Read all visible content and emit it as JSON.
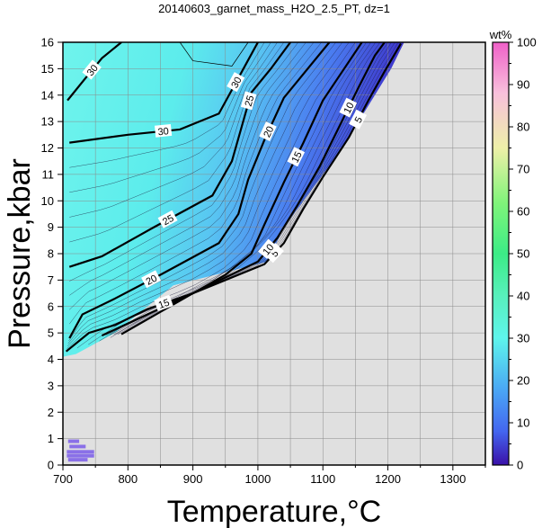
{
  "chart_data": {
    "type": "contour",
    "title": "20140603_garnet_mass_H2O_2.5_PT, dz=1",
    "xlabel": "Temperature,°C",
    "ylabel": "Pressure,kbar",
    "xlim": [
      700,
      1350
    ],
    "ylim": [
      0,
      16
    ],
    "x_ticks": [
      "700",
      "800",
      "900",
      "1000",
      "1100",
      "1200",
      "1300"
    ],
    "y_ticks": [
      "0",
      "1",
      "2",
      "3",
      "4",
      "5",
      "6",
      "7",
      "8",
      "9",
      "10",
      "11",
      "12",
      "13",
      "14",
      "15",
      "16"
    ],
    "grid": true,
    "colorbar": {
      "label": "wt%",
      "range": [
        0,
        100
      ],
      "ticks": [
        "0",
        "10",
        "20",
        "30",
        "40",
        "50",
        "60",
        "70",
        "80",
        "90",
        "100"
      ],
      "stops": [
        {
          "v": 0,
          "color": "#3a10a8"
        },
        {
          "v": 8,
          "color": "#4466f0"
        },
        {
          "v": 18,
          "color": "#4aa8f4"
        },
        {
          "v": 30,
          "color": "#5ef5ec"
        },
        {
          "v": 40,
          "color": "#58f0bc"
        },
        {
          "v": 50,
          "color": "#3cec86"
        },
        {
          "v": 62,
          "color": "#80f47a"
        },
        {
          "v": 75,
          "color": "#eef0a8"
        },
        {
          "v": 88,
          "color": "#f8c0dc"
        },
        {
          "v": 100,
          "color": "#f060c8"
        }
      ]
    },
    "no_data_color": "#e0e0e0",
    "field_boundary": [
      [
        700,
        16
      ],
      [
        1225,
        16
      ],
      [
        1205,
        15
      ],
      [
        1180,
        14
      ],
      [
        1155,
        13
      ],
      [
        1130,
        12
      ],
      [
        1100,
        11
      ],
      [
        1070,
        10
      ],
      [
        1040,
        9
      ],
      [
        1015,
        7.7
      ],
      [
        870,
        6.8
      ],
      [
        780,
        5
      ],
      [
        720,
        4.2
      ],
      [
        700,
        4.1
      ]
    ],
    "contours": [
      {
        "level": 5,
        "label": "5",
        "major": true,
        "points": [
          [
            760,
            4.9
          ],
          [
            900,
            6.5
          ],
          [
            1010,
            7.6
          ],
          [
            1040,
            8.4
          ],
          [
            1070,
            9.7
          ],
          [
            1100,
            10.9
          ],
          [
            1140,
            12.4
          ],
          [
            1170,
            13.8
          ],
          [
            1195,
            14.9
          ],
          [
            1220,
            15.95
          ]
        ]
      },
      {
        "level": 10,
        "label": "10",
        "major": true,
        "points": [
          [
            790,
            4.95
          ],
          [
            900,
            6.5
          ],
          [
            1000,
            7.7
          ],
          [
            1030,
            8.6
          ],
          [
            1060,
            9.8
          ],
          [
            1095,
            11.3
          ],
          [
            1125,
            12.8
          ],
          [
            1155,
            14.3
          ],
          [
            1180,
            15.5
          ],
          [
            1195,
            16
          ]
        ]
      },
      {
        "level": 15,
        "label": "15",
        "major": true,
        "points": [
          [
            705,
            4.3
          ],
          [
            740,
            5.0
          ],
          [
            780,
            5.3
          ],
          [
            830,
            5.9
          ],
          [
            900,
            6.5
          ],
          [
            950,
            7.2
          ],
          [
            990,
            8.0
          ],
          [
            1010,
            9.1
          ],
          [
            1040,
            10.7
          ],
          [
            1070,
            12.2
          ],
          [
            1100,
            13.8
          ],
          [
            1130,
            14.9
          ],
          [
            1160,
            16
          ]
        ]
      },
      {
        "level": 20,
        "label": "20",
        "major": true,
        "points": [
          [
            710,
            4.8
          ],
          [
            730,
            5.7
          ],
          [
            780,
            6.3
          ],
          [
            850,
            7.2
          ],
          [
            940,
            8.4
          ],
          [
            970,
            9.5
          ],
          [
            985,
            10.8
          ],
          [
            1010,
            12.3
          ],
          [
            1040,
            13.9
          ],
          [
            1080,
            15.1
          ],
          [
            1110,
            16
          ]
        ]
      },
      {
        "level": 25,
        "label": "25",
        "major": true,
        "points": [
          [
            710,
            7.5
          ],
          [
            760,
            7.9
          ],
          [
            840,
            9.0
          ],
          [
            930,
            10.2
          ],
          [
            960,
            11.5
          ],
          [
            975,
            12.8
          ],
          [
            990,
            14.1
          ],
          [
            1020,
            15.0
          ],
          [
            1050,
            16
          ]
        ]
      },
      {
        "level": 30,
        "label": "30",
        "major": true,
        "points": [
          [
            710,
            12.2
          ],
          [
            800,
            12.5
          ],
          [
            880,
            12.7
          ],
          [
            940,
            13.3
          ],
          [
            960,
            14.2
          ],
          [
            980,
            15.1
          ],
          [
            1000,
            16
          ]
        ]
      },
      {
        "level": 30,
        "label": "30",
        "major": true,
        "points": [
          [
            707,
            13.8
          ],
          [
            730,
            14.5
          ],
          [
            760,
            15.4
          ],
          [
            790,
            16
          ]
        ]
      },
      {
        "level": 32,
        "label": "",
        "major": false,
        "points": [
          [
            880,
            16
          ],
          [
            900,
            15.3
          ],
          [
            960,
            15.1
          ],
          [
            985,
            16
          ]
        ]
      }
    ],
    "legend_patches": [
      {
        "x0": 708,
        "x1": 725,
        "y": 0.9
      },
      {
        "x0": 710,
        "x1": 735,
        "y": 0.7
      },
      {
        "x0": 706,
        "x1": 748,
        "y": 0.5
      },
      {
        "x0": 706,
        "x1": 748,
        "y": 0.35
      },
      {
        "x0": 708,
        "x1": 738,
        "y": 0.2
      }
    ]
  }
}
